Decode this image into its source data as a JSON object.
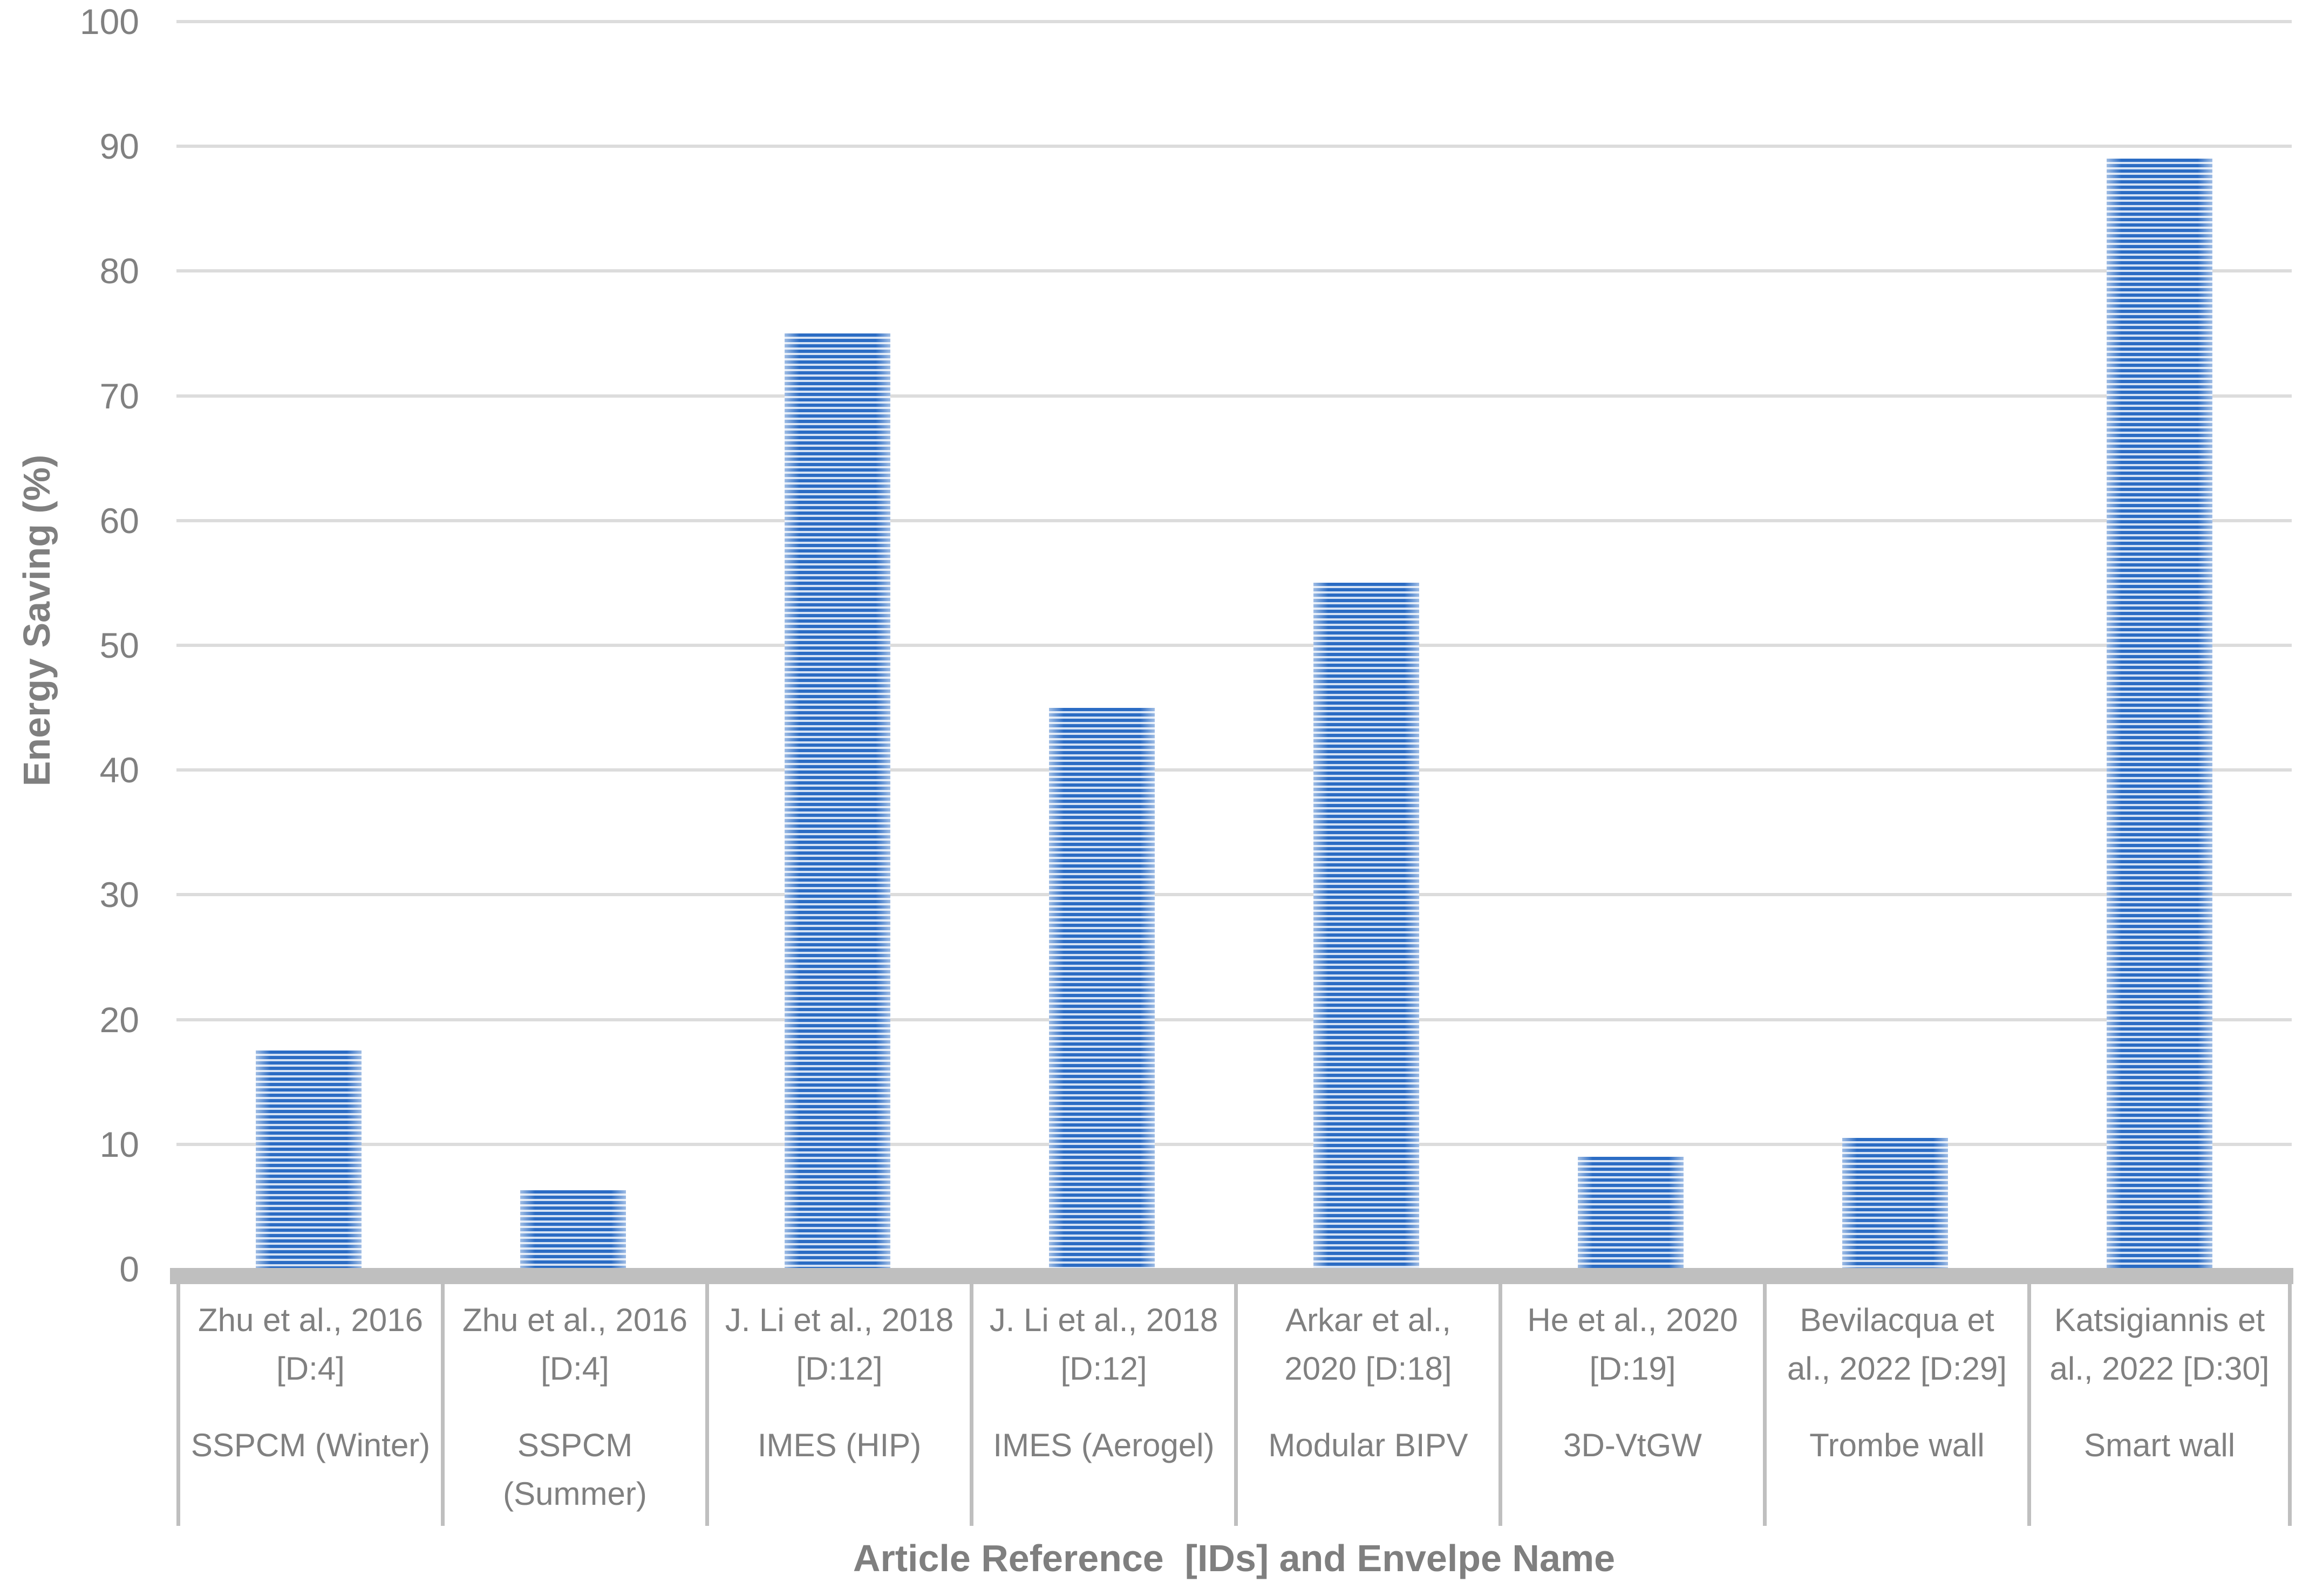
{
  "chart_data": {
    "type": "bar",
    "title": "",
    "xlabel": "Article Reference  [IDs] and Envelpe Name",
    "ylabel": "Energy Saving (%)",
    "ylim": [
      0,
      100
    ],
    "yticks": [
      0,
      10,
      20,
      30,
      40,
      50,
      60,
      70,
      80,
      90,
      100
    ],
    "grid": "horizontal",
    "legend_position": "none",
    "bar_pattern": "horizontal-stripes",
    "bar_color": "#2B6CC4",
    "bar_stripe_light": "#D5E2F4",
    "categories": [
      {
        "reference": "Zhu et al., 2016\n[D:4]",
        "envelope": "SSPCM (Winter)",
        "value": 17.5
      },
      {
        "reference": "Zhu et al., 2016\n[D:4]",
        "envelope": "SSPCM\n(Summer)",
        "value": 6.3
      },
      {
        "reference": "J. Li et al., 2018\n[D:12]",
        "envelope": "IMES (HIP)",
        "value": 75
      },
      {
        "reference": "J. Li et al., 2018\n[D:12]",
        "envelope": "IMES (Aerogel)",
        "value": 45
      },
      {
        "reference": "Arkar et al.,\n2020 [D:18]",
        "envelope": "Modular BIPV",
        "value": 55
      },
      {
        "reference": "He et al., 2020\n[D:19]",
        "envelope": "3D-VtGW",
        "value": 9
      },
      {
        "reference": "Bevilacqua et\nal., 2022 [D:29]",
        "envelope": "Trombe wall",
        "value": 10.5
      },
      {
        "reference": "Katsigiannis et\nal., 2022 [D:30]",
        "envelope": "Smart wall",
        "value": 89
      }
    ]
  },
  "styles": {
    "background": "#FFFFFF",
    "gridline_color": "#DCDCDC",
    "axis_color": "#BFBFBF",
    "tick_text_color": "#808080",
    "axis_title_color": "#7F7F7F"
  }
}
